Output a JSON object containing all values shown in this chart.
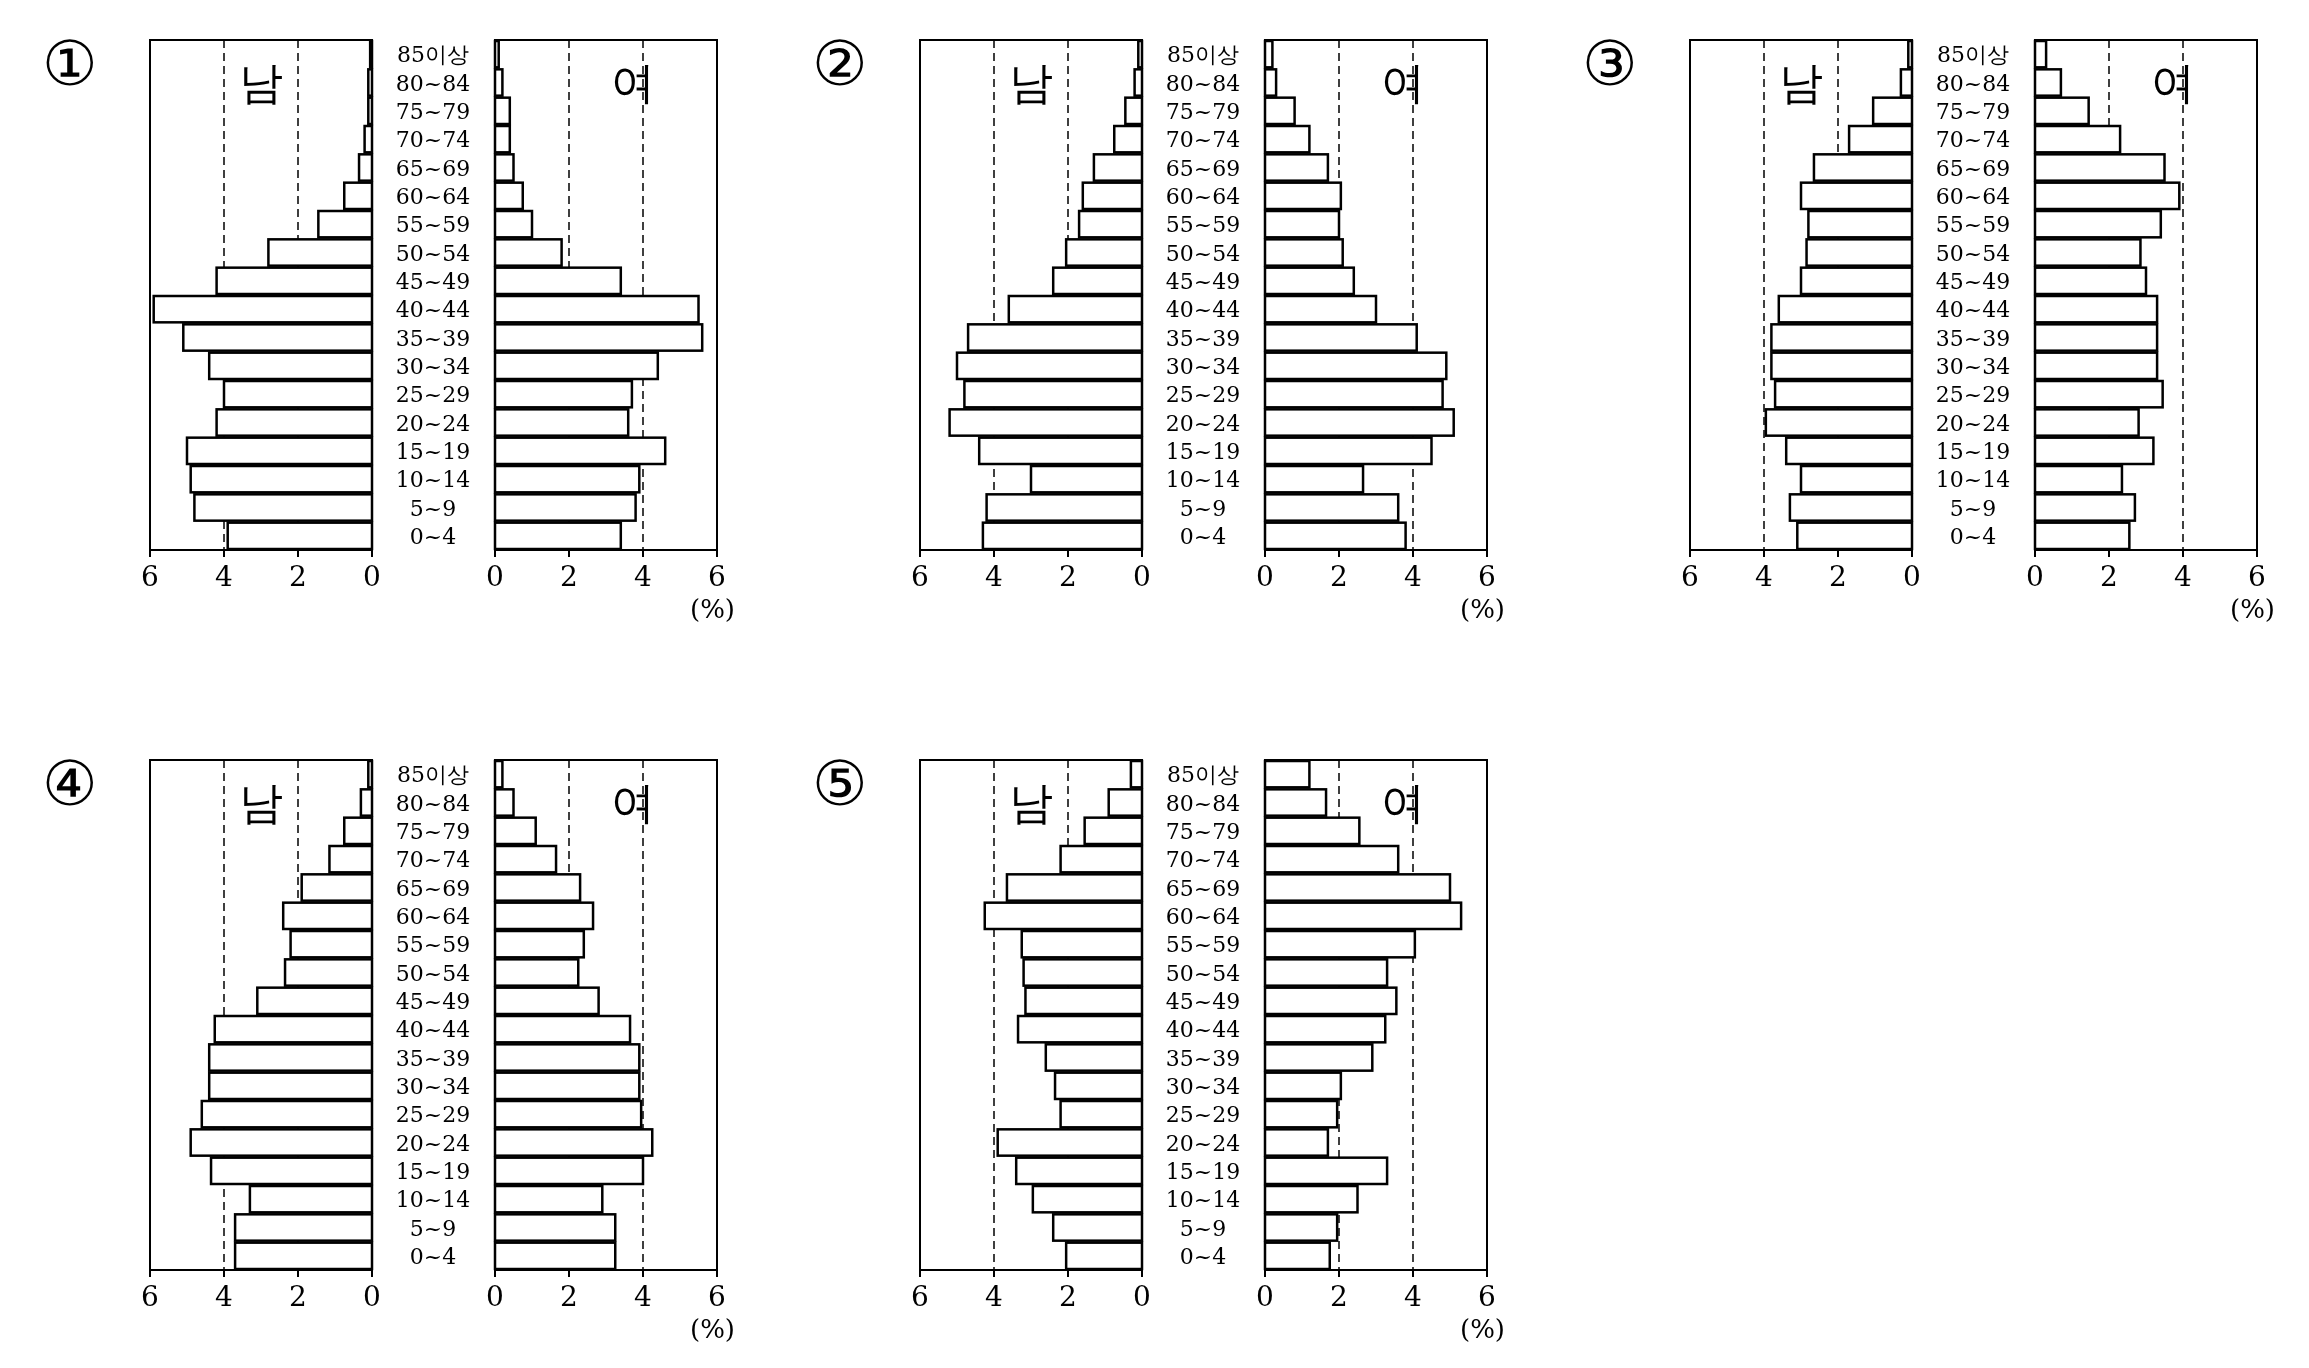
{
  "chart_data": [
    {
      "type": "bar",
      "orientation": "horizontal",
      "title": "①",
      "annotations": [
        "남"
      ],
      "categories": [
        "85이상",
        "80~84",
        "75~79",
        "70~74",
        "65~69",
        "60~64",
        "55~59",
        "50~54",
        "45~49",
        "40~44",
        "35~39",
        "30~34",
        "25~29",
        "20~24",
        "15~19",
        "10~14",
        "5~9",
        "0~4"
      ],
      "color": "#ffffff",
      "values": [
        0.05,
        0.1,
        0.1,
        0.2,
        0.35,
        0.75,
        1.45,
        2.8,
        4.2,
        5.9,
        5.1,
        4.4,
        4.0,
        4.2,
        5.0,
        4.9,
        4.8,
        3.9
      ],
      "xlim": [
        6,
        0
      ],
      "xticks": [
        6,
        4,
        2,
        0
      ],
      "grid": "x",
      "tick_labels": "x"
    },
    {
      "type": "bar",
      "orientation": "horizontal",
      "annotations": [
        "여"
      ],
      "xlabel": "(%)",
      "categories": [
        "85이상",
        "80~84",
        "75~79",
        "70~74",
        "65~69",
        "60~64",
        "55~59",
        "50~54",
        "45~49",
        "40~44",
        "35~39",
        "30~34",
        "25~29",
        "20~24",
        "15~19",
        "10~14",
        "5~9",
        "0~4"
      ],
      "color": "#ffffff",
      "values": [
        0.1,
        0.2,
        0.4,
        0.4,
        0.5,
        0.75,
        1.0,
        1.8,
        3.4,
        5.5,
        5.6,
        4.4,
        3.7,
        3.6,
        4.6,
        3.9,
        3.8,
        3.4
      ],
      "xlim": [
        0,
        6
      ],
      "xticks": [
        0,
        2,
        4,
        6
      ],
      "grid": "x"
    },
    {
      "type": "bar",
      "orientation": "horizontal",
      "title": "②",
      "annotations": [
        "남"
      ],
      "categories": [
        "85이상",
        "80~84",
        "75~79",
        "70~74",
        "65~69",
        "60~64",
        "55~59",
        "50~54",
        "45~49",
        "40~44",
        "35~39",
        "30~34",
        "25~29",
        "20~24",
        "15~19",
        "10~14",
        "5~9",
        "0~4"
      ],
      "color": "#ffffff",
      "values": [
        0.1,
        0.2,
        0.45,
        0.75,
        1.3,
        1.6,
        1.7,
        2.05,
        2.4,
        3.6,
        4.7,
        5.0,
        4.8,
        5.2,
        4.4,
        3.0,
        4.2,
        4.3
      ],
      "xlim": [
        6,
        0
      ],
      "xticks": [
        6,
        4,
        2,
        0
      ],
      "grid": "x",
      "tick_labels": "x"
    },
    {
      "type": "bar",
      "orientation": "horizontal",
      "annotations": [
        "여"
      ],
      "xlabel": "(%)",
      "categories": [
        "85이상",
        "80~84",
        "75~79",
        "70~74",
        "65~69",
        "60~64",
        "55~59",
        "50~54",
        "45~49",
        "40~44",
        "35~39",
        "30~34",
        "25~29",
        "20~24",
        "15~19",
        "10~14",
        "5~9",
        "0~4"
      ],
      "color": "#ffffff",
      "values": [
        0.2,
        0.3,
        0.8,
        1.2,
        1.7,
        2.05,
        2.0,
        2.1,
        2.4,
        3.0,
        4.1,
        4.9,
        4.8,
        5.1,
        4.5,
        2.65,
        3.6,
        3.8
      ],
      "xlim": [
        0,
        6
      ],
      "xticks": [
        0,
        2,
        4,
        6
      ],
      "grid": "x"
    },
    {
      "type": "bar",
      "orientation": "horizontal",
      "title": "③",
      "annotations": [
        "남"
      ],
      "categories": [
        "85이상",
        "80~84",
        "75~79",
        "70~74",
        "65~69",
        "60~64",
        "55~59",
        "50~54",
        "45~49",
        "40~44",
        "35~39",
        "30~34",
        "25~29",
        "20~24",
        "15~19",
        "10~14",
        "5~9",
        "0~4"
      ],
      "color": "#ffffff",
      "values": [
        0.1,
        0.3,
        1.05,
        1.7,
        2.65,
        3.0,
        2.8,
        2.85,
        3.0,
        3.6,
        3.8,
        3.8,
        3.7,
        3.95,
        3.4,
        3.0,
        3.3,
        3.1
      ],
      "xlim": [
        6,
        0
      ],
      "xticks": [
        6,
        4,
        2,
        0
      ],
      "grid": "x",
      "tick_labels": "x"
    },
    {
      "type": "bar",
      "orientation": "horizontal",
      "annotations": [
        "여"
      ],
      "xlabel": "(%)",
      "categories": [
        "85이상",
        "80~84",
        "75~79",
        "70~74",
        "65~69",
        "60~64",
        "55~59",
        "50~54",
        "45~49",
        "40~44",
        "35~39",
        "30~34",
        "25~29",
        "20~24",
        "15~19",
        "10~14",
        "5~9",
        "0~4"
      ],
      "color": "#ffffff",
      "values": [
        0.3,
        0.7,
        1.45,
        2.3,
        3.5,
        3.9,
        3.4,
        2.85,
        3.0,
        3.3,
        3.3,
        3.3,
        3.45,
        2.8,
        3.2,
        2.35,
        2.7,
        2.55
      ],
      "xlim": [
        0,
        6
      ],
      "xticks": [
        0,
        2,
        4,
        6
      ],
      "grid": "x"
    },
    {
      "type": "bar",
      "orientation": "horizontal",
      "title": "④",
      "annotations": [
        "남"
      ],
      "categories": [
        "85이상",
        "80~84",
        "75~79",
        "70~74",
        "65~69",
        "60~64",
        "55~59",
        "50~54",
        "45~49",
        "40~44",
        "35~39",
        "30~34",
        "25~29",
        "20~24",
        "15~19",
        "10~14",
        "5~9",
        "0~4"
      ],
      "color": "#ffffff",
      "values": [
        0.1,
        0.3,
        0.75,
        1.15,
        1.9,
        2.4,
        2.2,
        2.35,
        3.1,
        4.25,
        4.4,
        4.4,
        4.6,
        4.9,
        4.35,
        3.3,
        3.7,
        3.7
      ],
      "xlim": [
        6,
        0
      ],
      "xticks": [
        6,
        4,
        2,
        0
      ],
      "grid": "x",
      "tick_labels": "x"
    },
    {
      "type": "bar",
      "orientation": "horizontal",
      "annotations": [
        "여"
      ],
      "xlabel": "(%)",
      "categories": [
        "85이상",
        "80~84",
        "75~79",
        "70~74",
        "65~69",
        "60~64",
        "55~59",
        "50~54",
        "45~49",
        "40~44",
        "35~39",
        "30~34",
        "25~29",
        "20~24",
        "15~19",
        "10~14",
        "5~9",
        "0~4"
      ],
      "color": "#ffffff",
      "values": [
        0.2,
        0.5,
        1.1,
        1.65,
        2.3,
        2.65,
        2.4,
        2.25,
        2.8,
        3.65,
        3.9,
        3.9,
        3.95,
        4.25,
        4.0,
        2.9,
        3.25,
        3.25
      ],
      "xlim": [
        0,
        6
      ],
      "xticks": [
        0,
        2,
        4,
        6
      ],
      "grid": "x"
    },
    {
      "type": "bar",
      "orientation": "horizontal",
      "title": "⑤",
      "annotations": [
        "남"
      ],
      "categories": [
        "85이상",
        "80~84",
        "75~79",
        "70~74",
        "65~69",
        "60~64",
        "55~59",
        "50~54",
        "45~49",
        "40~44",
        "35~39",
        "30~34",
        "25~29",
        "20~24",
        "15~19",
        "10~14",
        "5~9",
        "0~4"
      ],
      "color": "#ffffff",
      "values": [
        0.3,
        0.9,
        1.55,
        2.2,
        3.65,
        4.25,
        3.25,
        3.2,
        3.15,
        3.35,
        2.6,
        2.35,
        2.2,
        3.9,
        3.4,
        2.95,
        2.4,
        2.05
      ],
      "xlim": [
        6,
        0
      ],
      "xticks": [
        6,
        4,
        2,
        0
      ],
      "grid": "x",
      "tick_labels": "x"
    },
    {
      "type": "bar",
      "orientation": "horizontal",
      "annotations": [
        "여"
      ],
      "xlabel": "(%)",
      "categories": [
        "85이상",
        "80~84",
        "75~79",
        "70~74",
        "65~69",
        "60~64",
        "55~59",
        "50~54",
        "45~49",
        "40~44",
        "35~39",
        "30~34",
        "25~29",
        "20~24",
        "15~19",
        "10~14",
        "5~9",
        "0~4"
      ],
      "color": "#ffffff",
      "values": [
        1.2,
        1.65,
        2.55,
        3.6,
        5.0,
        5.3,
        4.05,
        3.3,
        3.55,
        3.25,
        2.9,
        2.05,
        1.95,
        1.7,
        3.3,
        2.5,
        1.95,
        1.75
      ],
      "xlim": [
        0,
        6
      ],
      "xticks": [
        0,
        2,
        4,
        6
      ],
      "grid": "x"
    }
  ]
}
